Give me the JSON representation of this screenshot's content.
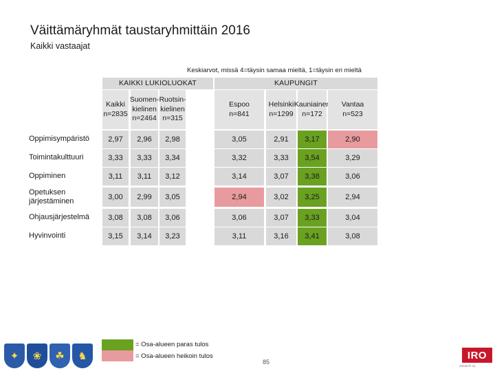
{
  "title": "Väittämäryhmät taustaryhmittäin 2016",
  "subtitle": "Kaikki vastaajat",
  "scale_note": "Keskiarvot, missä 4=täysin samaa mieltä, 1=täysin eri mieltä",
  "groups": {
    "lukio": "KAIKKI LUKIOLUOKAT",
    "kaupungit": "KAUPUNGIT"
  },
  "columns": [
    {
      "lines": [
        "Kaikki",
        "n=2835"
      ]
    },
    {
      "lines": [
        "Suomen-",
        "kielinen",
        "n=2464"
      ]
    },
    {
      "lines": [
        "Ruotsin-",
        "kielinen",
        "n=315"
      ]
    },
    {
      "lines": [
        "Espoo",
        "n=841"
      ]
    },
    {
      "lines": [
        "Helsinki",
        "n=1299"
      ]
    },
    {
      "lines": [
        "Kauniainen",
        "n=172"
      ]
    },
    {
      "lines": [
        "Vantaa",
        "n=523"
      ]
    }
  ],
  "rows": [
    {
      "label": "Oppimisympäristö",
      "values": [
        "2,97",
        "2,96",
        "2,98",
        "3,05",
        "2,91",
        "3,17",
        "2,90"
      ],
      "best": 5,
      "worst": 6
    },
    {
      "label": "Toimintakulttuuri",
      "values": [
        "3,33",
        "3,33",
        "3,34",
        "3,32",
        "3,33",
        "3,54",
        "3,29"
      ],
      "best": 5,
      "worst": -1
    },
    {
      "label": "Oppiminen",
      "values": [
        "3,11",
        "3,11",
        "3,12",
        "3,14",
        "3,07",
        "3,38",
        "3,06"
      ],
      "best": 5,
      "worst": -1
    },
    {
      "label": "Opetuksen järjestäminen",
      "values": [
        "3,00",
        "2,99",
        "3,05",
        "2,94",
        "3,02",
        "3,25",
        "2,94"
      ],
      "best": 5,
      "worst": 3
    },
    {
      "label": "Ohjausjärjestelmä",
      "values": [
        "3,08",
        "3,08",
        "3,06",
        "3,06",
        "3,07",
        "3,33",
        "3,04"
      ],
      "best": 5,
      "worst": -1
    },
    {
      "label": "Hyvinvointi",
      "values": [
        "3,15",
        "3,14",
        "3,23",
        "3,11",
        "3,16",
        "3,41",
        "3,08"
      ],
      "best": 5,
      "worst": -1
    }
  ],
  "legend": {
    "best": "=  Osa-alueen paras tulos",
    "worst": "=  Osa-alueen heikoin tulos"
  },
  "page_number": "85",
  "logo": {
    "text": "IRO",
    "sub": "research oy"
  },
  "colors": {
    "best": "#6aa121",
    "worst": "#e89b9f",
    "neutral": "#d9d9d9"
  },
  "crests": [
    "crest-icon",
    "crest-icon",
    "crest-icon",
    "crest-icon"
  ]
}
